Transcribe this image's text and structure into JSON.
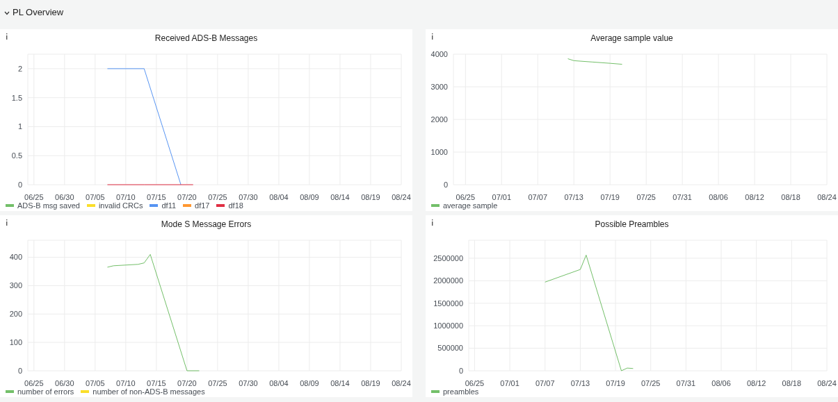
{
  "chart_data": [
    {
      "type": "line",
      "title": "Received ADS-B Messages",
      "annotations": [
        "PL Overview"
      ],
      "x": [
        "--07-07",
        "--07-13",
        "--07-19",
        "--07-21"
      ],
      "series": [
        {
          "name": "ADS-B msg saved",
          "color": "#73bf69",
          "values": [
            null,
            null,
            null,
            null
          ]
        },
        {
          "name": "invalid CRCs",
          "color": "#fade2a",
          "values": [
            null,
            null,
            null,
            null
          ]
        },
        {
          "name": "df11",
          "color": "#5794f2",
          "values": [
            2,
            2,
            0,
            null
          ]
        },
        {
          "name": "df17",
          "color": "#ff9830",
          "values": [
            null,
            null,
            null,
            null
          ]
        },
        {
          "name": "df18",
          "color": "#e02f44",
          "values": [
            0,
            0,
            0,
            0
          ]
        }
      ],
      "xlim": [
        "--06-24",
        "--08-24"
      ],
      "xticks": [
        {
          "value": "--06-25",
          "label": "06/25"
        },
        {
          "value": "--06-30",
          "label": "06/30"
        },
        {
          "value": "--07-05",
          "label": "07/05"
        },
        {
          "value": "--07-10",
          "label": "07/10"
        },
        {
          "value": "--07-15",
          "label": "07/15"
        },
        {
          "value": "--07-20",
          "label": "07/20"
        },
        {
          "value": "--07-25",
          "label": "07/25"
        },
        {
          "value": "--07-30",
          "label": "07/30"
        },
        {
          "value": "--08-04",
          "label": "08/04"
        },
        {
          "value": "--08-09",
          "label": "08/09"
        },
        {
          "value": "--08-14",
          "label": "08/14"
        },
        {
          "value": "--08-19",
          "label": "08/19"
        },
        {
          "value": "--08-24",
          "label": "08/24"
        }
      ],
      "ylim": [
        0,
        2.25
      ],
      "yticks": [
        0,
        0.5,
        1,
        1.5,
        2
      ],
      "grid": true,
      "legend": "bottom",
      "marker": "none",
      "line_style": "solid"
    },
    {
      "type": "line",
      "title": "Average sample value",
      "x": [
        "--07-12",
        "--07-13",
        "--07-16",
        "--07-19",
        "--07-21"
      ],
      "series": [
        {
          "name": "average sample",
          "color": "#73bf69",
          "values": [
            3860,
            3800,
            3760,
            3720,
            3690
          ]
        }
      ],
      "xlim": [
        "--06-23",
        "--08-24"
      ],
      "xticks": [
        {
          "value": "--06-25",
          "label": "06/25"
        },
        {
          "value": "--07-01",
          "label": "07/01"
        },
        {
          "value": "--07-07",
          "label": "07/07"
        },
        {
          "value": "--07-13",
          "label": "07/13"
        },
        {
          "value": "--07-19",
          "label": "07/19"
        },
        {
          "value": "--07-25",
          "label": "07/25"
        },
        {
          "value": "--07-31",
          "label": "07/31"
        },
        {
          "value": "--08-06",
          "label": "08/06"
        },
        {
          "value": "--08-12",
          "label": "08/12"
        },
        {
          "value": "--08-18",
          "label": "08/18"
        },
        {
          "value": "--08-24",
          "label": "08/24"
        }
      ],
      "ylim": [
        0,
        4000
      ],
      "yticks": [
        0,
        1000,
        2000,
        3000,
        4000
      ],
      "grid": true,
      "legend": "bottom",
      "marker": "none",
      "line_style": "solid"
    },
    {
      "type": "line",
      "title": "Mode S Message Errors",
      "x": [
        "--07-07",
        "--07-08",
        "--07-12",
        "--07-13",
        "--07-14",
        "--07-20",
        "--07-22"
      ],
      "series": [
        {
          "name": "number of errors",
          "color": "#73bf69",
          "values": [
            365,
            370,
            375,
            380,
            410,
            0,
            0
          ]
        },
        {
          "name": "number of non-ADS-B messages",
          "color": "#fade2a",
          "values": [
            null,
            null,
            null,
            null,
            null,
            null,
            null
          ]
        }
      ],
      "xlim": [
        "--06-24",
        "--08-24"
      ],
      "xticks": [
        {
          "value": "--06-25",
          "label": "06/25"
        },
        {
          "value": "--06-30",
          "label": "06/30"
        },
        {
          "value": "--07-05",
          "label": "07/05"
        },
        {
          "value": "--07-10",
          "label": "07/10"
        },
        {
          "value": "--07-15",
          "label": "07/15"
        },
        {
          "value": "--07-20",
          "label": "07/20"
        },
        {
          "value": "--07-25",
          "label": "07/25"
        },
        {
          "value": "--07-30",
          "label": "07/30"
        },
        {
          "value": "--08-04",
          "label": "08/04"
        },
        {
          "value": "--08-09",
          "label": "08/09"
        },
        {
          "value": "--08-14",
          "label": "08/14"
        },
        {
          "value": "--08-19",
          "label": "08/19"
        },
        {
          "value": "--08-24",
          "label": "08/24"
        }
      ],
      "ylim": [
        0,
        460
      ],
      "yticks": [
        0,
        100,
        200,
        300,
        400
      ],
      "grid": true,
      "legend": "bottom",
      "marker": "none",
      "line_style": "solid"
    },
    {
      "type": "line",
      "title": "Possible Preambles",
      "x": [
        "--07-07",
        "--07-13",
        "--07-14",
        "--07-20",
        "--07-21",
        "--07-22"
      ],
      "series": [
        {
          "name": "preambles",
          "color": "#73bf69",
          "values": [
            1970000,
            2250000,
            2570000,
            0,
            60000,
            50000
          ]
        }
      ],
      "xlim": [
        "--06-24",
        "--08-24"
      ],
      "xticks": [
        {
          "value": "--06-25",
          "label": "06/25"
        },
        {
          "value": "--07-01",
          "label": "07/01"
        },
        {
          "value": "--07-07",
          "label": "07/07"
        },
        {
          "value": "--07-13",
          "label": "07/13"
        },
        {
          "value": "--07-19",
          "label": "07/19"
        },
        {
          "value": "--07-25",
          "label": "07/25"
        },
        {
          "value": "--07-31",
          "label": "07/31"
        },
        {
          "value": "--08-06",
          "label": "08/06"
        },
        {
          "value": "--08-12",
          "label": "08/12"
        },
        {
          "value": "--08-18",
          "label": "08/18"
        },
        {
          "value": "--08-24",
          "label": "08/24"
        }
      ],
      "ylim": [
        0,
        2900000
      ],
      "yticks": [
        0,
        500000,
        1000000,
        1500000,
        2000000,
        2500000
      ],
      "grid": true,
      "legend": "bottom",
      "marker": "none",
      "line_style": "solid"
    }
  ]
}
